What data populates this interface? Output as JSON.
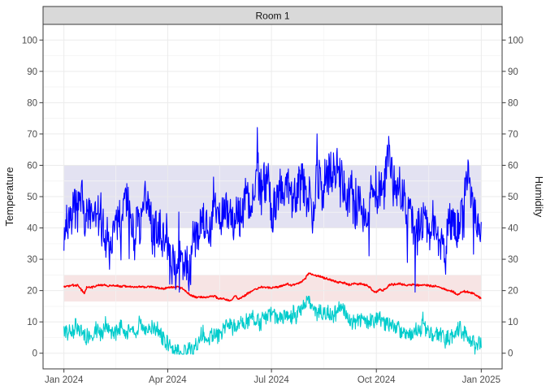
{
  "figure": {
    "facet_title": "Room 1",
    "background": "#FFFFFF",
    "strip_fill": "#D9D9D9",
    "panel_border_color": "#3A3A3A",
    "grid_major_color": "#EBEBEB",
    "grid_minor_color": "#F4F4F4",
    "tick_label_color": "#4D4D4D"
  },
  "axes": {
    "left": {
      "title": "Temperature",
      "ticks": [
        0,
        10,
        20,
        30,
        40,
        50,
        60,
        70,
        80,
        90,
        100
      ]
    },
    "right": {
      "title": "Humidity",
      "ticks": [
        0,
        10,
        20,
        30,
        40,
        50,
        60,
        70,
        80,
        90,
        100
      ]
    },
    "bottom": {
      "ticks": [
        {
          "label": "Jan 2024",
          "day": 0
        },
        {
          "label": "Apr 2024",
          "day": 91
        },
        {
          "label": "Jul 2024",
          "day": 182
        },
        {
          "label": "Oct 2024",
          "day": 274
        },
        {
          "label": "Jan 2025",
          "day": 366
        }
      ],
      "minor_gridline_days": [
        45.5,
        136.5,
        228,
        320
      ]
    }
  },
  "chart_data": {
    "type": "line",
    "title": "Room 1",
    "x_axis": {
      "label": "",
      "start": "Jan 2024",
      "end": "Jan 2025",
      "unit": "day of year 2024",
      "range_days": [
        0,
        366
      ]
    },
    "y_left": {
      "label": "Temperature",
      "range": [
        0,
        100
      ]
    },
    "y_right": {
      "label": "Humidity",
      "range": [
        0,
        100
      ]
    },
    "grid": true,
    "legend": "none",
    "bands": [
      {
        "name": "humidity-comfort-band",
        "axis": "right",
        "from": 40,
        "to": 60,
        "fill": "#E3E2F2"
      },
      {
        "name": "temperature-comfort-band",
        "axis": "left",
        "from": 16.5,
        "to": 25,
        "fill": "#F7E4E4"
      }
    ],
    "series": [
      {
        "name": "humidity-blue",
        "color": "#0000FF",
        "axis": "right",
        "unit": "%",
        "width": 1.1,
        "seed": 7,
        "noise_amp": 6.8,
        "spike": 1.5,
        "clamp": [
          19.5,
          76.5
        ],
        "anchors": [
          [
            0,
            41
          ],
          [
            7,
            42
          ],
          [
            14,
            40
          ],
          [
            21,
            43
          ],
          [
            28,
            41
          ],
          [
            35,
            39
          ],
          [
            42,
            42
          ],
          [
            49,
            40
          ],
          [
            56,
            43
          ],
          [
            63,
            41
          ],
          [
            70,
            42
          ],
          [
            77,
            40
          ],
          [
            84,
            39
          ],
          [
            90,
            37
          ],
          [
            95,
            30
          ],
          [
            100,
            26
          ],
          [
            105,
            25.5
          ],
          [
            110,
            28
          ],
          [
            115,
            33
          ],
          [
            120,
            37
          ],
          [
            126,
            39
          ],
          [
            133,
            41
          ],
          [
            140,
            43
          ],
          [
            147,
            44
          ],
          [
            154,
            47
          ],
          [
            160,
            50
          ],
          [
            166,
            53
          ],
          [
            172,
            54
          ],
          [
            178,
            52
          ],
          [
            184,
            53
          ],
          [
            190,
            55
          ],
          [
            196,
            53
          ],
          [
            203,
            52
          ],
          [
            210,
            55
          ],
          [
            217,
            56
          ],
          [
            224,
            53
          ],
          [
            231,
            54
          ],
          [
            238,
            55
          ],
          [
            245,
            53
          ],
          [
            252,
            51
          ],
          [
            259,
            52
          ],
          [
            264,
            47
          ],
          [
            268,
            45
          ],
          [
            273,
            50
          ],
          [
            280,
            52
          ],
          [
            287,
            51
          ],
          [
            294,
            48
          ],
          [
            301,
            49
          ],
          [
            308,
            45
          ],
          [
            315,
            43
          ],
          [
            322,
            41
          ],
          [
            329,
            43
          ],
          [
            336,
            41
          ],
          [
            343,
            45
          ],
          [
            350,
            52
          ],
          [
            354,
            54
          ],
          [
            358,
            46
          ],
          [
            362,
            40
          ],
          [
            366,
            35
          ]
        ]
      },
      {
        "name": "temperature-red",
        "color": "#FF0000",
        "axis": "left",
        "unit": "degC",
        "width": 1.5,
        "seed": 3,
        "noise_amp": 0.28,
        "spike": 0,
        "clamp": [
          16.65,
          26.2
        ],
        "anchors": [
          [
            0,
            21.3
          ],
          [
            6,
            21.5
          ],
          [
            12,
            21.4
          ],
          [
            16,
            20
          ],
          [
            18,
            19
          ],
          [
            20,
            21.2
          ],
          [
            28,
            21.5
          ],
          [
            36,
            21.7
          ],
          [
            44,
            21.5
          ],
          [
            52,
            21.6
          ],
          [
            60,
            21.3
          ],
          [
            68,
            21.2
          ],
          [
            76,
            21.1
          ],
          [
            84,
            20.8
          ],
          [
            90,
            20.9
          ],
          [
            96,
            21.1
          ],
          [
            100,
            21.3
          ],
          [
            104,
            20.6
          ],
          [
            108,
            19.6
          ],
          [
            112,
            18.6
          ],
          [
            116,
            18.2
          ],
          [
            120,
            18
          ],
          [
            124,
            17.8
          ],
          [
            128,
            17.7
          ],
          [
            132,
            17.9
          ],
          [
            136,
            17.5
          ],
          [
            140,
            17.3
          ],
          [
            144,
            17.1
          ],
          [
            147,
            16.9
          ],
          [
            150,
            18.3
          ],
          [
            153,
            17.3
          ],
          [
            156,
            17.8
          ],
          [
            160,
            18.6
          ],
          [
            164,
            19.6
          ],
          [
            168,
            20.7
          ],
          [
            172,
            21.2
          ],
          [
            176,
            21.1
          ],
          [
            180,
            21
          ],
          [
            184,
            21.2
          ],
          [
            188,
            21.4
          ],
          [
            192,
            22
          ],
          [
            196,
            22.2
          ],
          [
            200,
            21.9
          ],
          [
            204,
            22.1
          ],
          [
            208,
            22.6
          ],
          [
            211,
            23.4
          ],
          [
            213,
            24.6
          ],
          [
            215,
            25.6
          ],
          [
            218,
            25.2
          ],
          [
            222,
            24.7
          ],
          [
            226,
            24.2
          ],
          [
            230,
            23.8
          ],
          [
            234,
            23.4
          ],
          [
            238,
            23.1
          ],
          [
            242,
            22.8
          ],
          [
            246,
            22.4
          ],
          [
            250,
            22
          ],
          [
            254,
            22.3
          ],
          [
            258,
            21.9
          ],
          [
            262,
            22.2
          ],
          [
            266,
            21.8
          ],
          [
            269,
            20.9
          ],
          [
            271,
            20.1
          ],
          [
            274,
            19.7
          ],
          [
            277,
            20.4
          ],
          [
            280,
            19.9
          ],
          [
            283,
            20.8
          ],
          [
            286,
            21.9
          ],
          [
            290,
            22.2
          ],
          [
            294,
            22.3
          ],
          [
            298,
            22
          ],
          [
            302,
            21.8
          ],
          [
            306,
            22.1
          ],
          [
            310,
            21.9
          ],
          [
            314,
            21.7
          ],
          [
            318,
            21.9
          ],
          [
            322,
            21.6
          ],
          [
            326,
            21.3
          ],
          [
            330,
            21
          ],
          [
            334,
            20.6
          ],
          [
            338,
            20.1
          ],
          [
            342,
            19.4
          ],
          [
            345,
            18.6
          ],
          [
            348,
            19.3
          ],
          [
            351,
            19.9
          ],
          [
            354,
            19.6
          ],
          [
            357,
            19.2
          ],
          [
            360,
            18.8
          ],
          [
            363,
            18.3
          ],
          [
            366,
            17.5
          ]
        ]
      },
      {
        "name": "temperature-cyan",
        "color": "#00CCCC",
        "axis": "left",
        "unit": "degC",
        "width": 1.1,
        "seed": 5,
        "noise_amp": 2.4,
        "spike": 1.1,
        "clamp": [
          -0.3,
          18.2
        ],
        "anchors": [
          [
            0,
            7
          ],
          [
            7,
            6
          ],
          [
            14,
            8
          ],
          [
            21,
            7
          ],
          [
            28,
            6
          ],
          [
            35,
            7
          ],
          [
            42,
            8
          ],
          [
            49,
            6
          ],
          [
            56,
            7
          ],
          [
            63,
            8
          ],
          [
            70,
            7
          ],
          [
            77,
            8
          ],
          [
            84,
            7
          ],
          [
            90,
            5
          ],
          [
            95,
            2.5
          ],
          [
            100,
            1.5
          ],
          [
            105,
            2
          ],
          [
            110,
            3.5
          ],
          [
            115,
            5
          ],
          [
            121,
            6
          ],
          [
            126,
            6.5
          ],
          [
            133,
            7
          ],
          [
            140,
            7.5
          ],
          [
            147,
            8
          ],
          [
            154,
            9
          ],
          [
            160,
            10
          ],
          [
            166,
            10.5
          ],
          [
            172,
            11
          ],
          [
            178,
            11
          ],
          [
            184,
            11.5
          ],
          [
            190,
            12
          ],
          [
            196,
            12.5
          ],
          [
            203,
            13
          ],
          [
            208,
            14.5
          ],
          [
            212,
            16
          ],
          [
            215,
            16
          ],
          [
            218,
            15
          ],
          [
            222,
            13.5
          ],
          [
            226,
            12.5
          ],
          [
            231,
            12
          ],
          [
            238,
            12.5
          ],
          [
            245,
            11.5
          ],
          [
            252,
            10.5
          ],
          [
            259,
            11
          ],
          [
            266,
            10
          ],
          [
            273,
            9.5
          ],
          [
            280,
            10
          ],
          [
            287,
            9
          ],
          [
            294,
            8.5
          ],
          [
            301,
            8
          ],
          [
            308,
            7
          ],
          [
            315,
            6
          ],
          [
            322,
            5.5
          ],
          [
            329,
            5
          ],
          [
            336,
            5.5
          ],
          [
            343,
            6
          ],
          [
            348,
            8
          ],
          [
            352,
            9
          ],
          [
            356,
            6
          ],
          [
            360,
            4
          ],
          [
            363,
            3
          ],
          [
            366,
            2.5
          ]
        ]
      }
    ]
  }
}
